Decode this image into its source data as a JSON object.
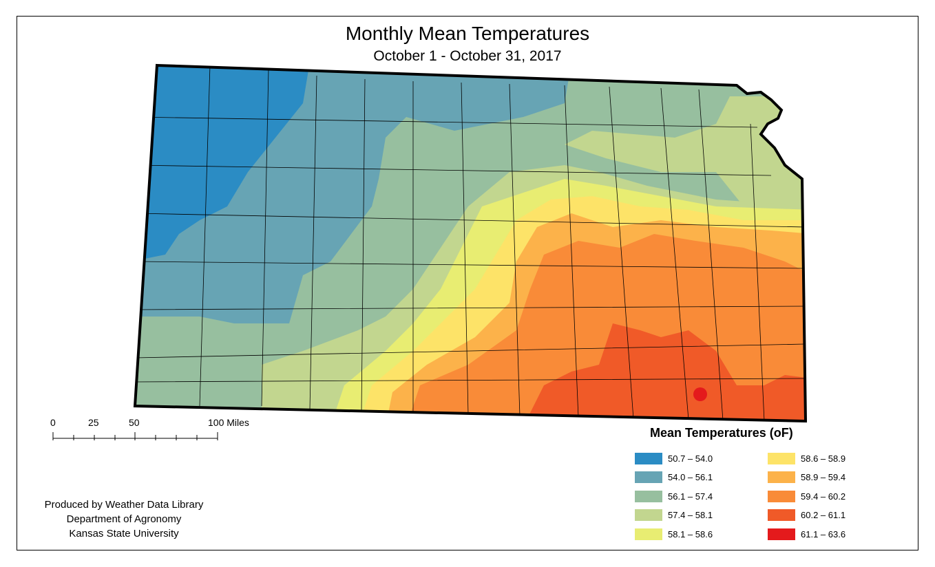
{
  "title": "Monthly Mean Temperatures",
  "subtitle": "October 1 - October 31, 2017",
  "scale_bar": {
    "labels": [
      "0",
      "25",
      "50",
      "100 Miles"
    ]
  },
  "credits": [
    "Produced by Weather Data Library",
    "Department of Agronomy",
    "Kansas State University"
  ],
  "legend": {
    "title": "Mean Temperatures (oF)",
    "items": [
      {
        "label": "50.7 – 54.0",
        "color": "#2b8cc4"
      },
      {
        "label": "54.0 – 56.1",
        "color": "#67a4b4"
      },
      {
        "label": "56.1 – 57.4",
        "color": "#97bf9f"
      },
      {
        "label": "57.4 – 58.1",
        "color": "#c2d68f"
      },
      {
        "label": "58.1 – 58.6",
        "color": "#e8ed72"
      },
      {
        "label": "58.6 – 58.9",
        "color": "#fde368"
      },
      {
        "label": "58.9 – 59.4",
        "color": "#fcb24a"
      },
      {
        "label": "59.4 – 60.2",
        "color": "#f98b38"
      },
      {
        "label": "60.2 – 61.1",
        "color": "#f05a28"
      },
      {
        "label": "61.1 – 63.6",
        "color": "#e41a1c"
      }
    ]
  }
}
